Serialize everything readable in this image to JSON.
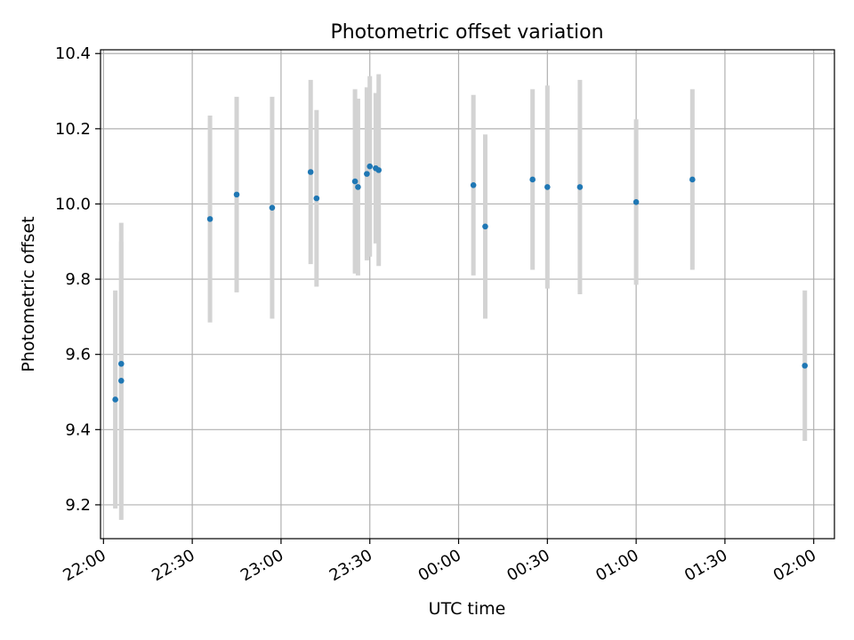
{
  "chart_data": {
    "type": "scatter",
    "title": "Photometric offset variation",
    "xlabel": "UTC time",
    "ylabel": "Photometric offset",
    "x_is_time": true,
    "x_ticks": [
      "22:00",
      "22:30",
      "23:00",
      "23:30",
      "00:00",
      "00:30",
      "01:00",
      "01:30",
      "02:00"
    ],
    "y_ticks": [
      "9.2",
      "9.4",
      "9.6",
      "9.8",
      "10.0",
      "10.2",
      "10.4"
    ],
    "xlim": [
      "21:59",
      "02:07"
    ],
    "ylim": [
      9.11,
      10.41
    ],
    "grid": true,
    "point_color": "#1f77b4",
    "errorbar_color": "#d3d3d3",
    "points": [
      {
        "x": "22:04",
        "y": 9.48,
        "err": 0.29
      },
      {
        "x": "22:06",
        "y": 9.53,
        "err": 0.37
      },
      {
        "x": "22:06",
        "y": 9.575,
        "err": 0.375
      },
      {
        "x": "22:36",
        "y": 9.96,
        "err": 0.275
      },
      {
        "x": "22:45",
        "y": 10.025,
        "err": 0.26
      },
      {
        "x": "22:57",
        "y": 9.99,
        "err": 0.295
      },
      {
        "x": "23:10",
        "y": 10.085,
        "err": 0.245
      },
      {
        "x": "23:12",
        "y": 10.015,
        "err": 0.235
      },
      {
        "x": "23:25",
        "y": 10.06,
        "err": 0.245
      },
      {
        "x": "23:26",
        "y": 10.045,
        "err": 0.235
      },
      {
        "x": "23:29",
        "y": 10.08,
        "err": 0.23
      },
      {
        "x": "23:30",
        "y": 10.1,
        "err": 0.24
      },
      {
        "x": "23:32",
        "y": 10.095,
        "err": 0.2
      },
      {
        "x": "23:33",
        "y": 10.09,
        "err": 0.255
      },
      {
        "x": "00:05",
        "y": 10.05,
        "err": 0.24
      },
      {
        "x": "00:09",
        "y": 9.94,
        "err": 0.245
      },
      {
        "x": "00:25",
        "y": 10.065,
        "err": 0.24
      },
      {
        "x": "00:30",
        "y": 10.045,
        "err": 0.27
      },
      {
        "x": "00:41",
        "y": 10.045,
        "err": 0.285
      },
      {
        "x": "01:00",
        "y": 10.005,
        "err": 0.22
      },
      {
        "x": "01:19",
        "y": 10.065,
        "err": 0.24
      },
      {
        "x": "01:57",
        "y": 9.57,
        "err": 0.2
      }
    ]
  }
}
